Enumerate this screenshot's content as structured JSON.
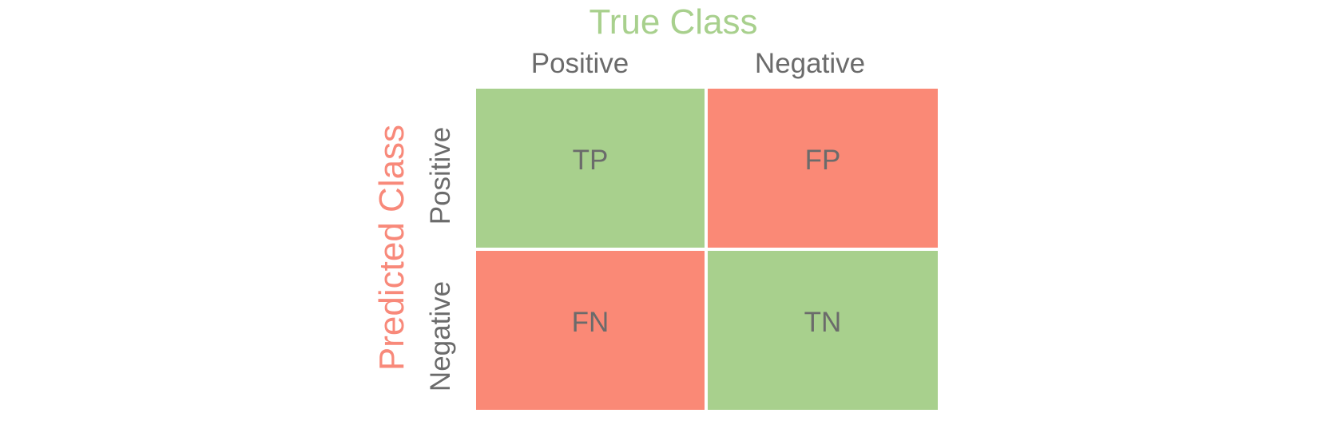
{
  "colors": {
    "true_title": "#a8d08d",
    "predicted_title": "#f8897a",
    "correct_cell": "#a8d08d",
    "incorrect_cell": "#fa8976",
    "label_text": "#6b6b6b"
  },
  "true_class_title": "True Class",
  "predicted_class_title": "Predicted Class",
  "columns": [
    "Positive",
    "Negative"
  ],
  "rows": [
    "Positive",
    "Negative"
  ],
  "cells": [
    [
      {
        "label": "TP",
        "kind": "correct"
      },
      {
        "label": "FP",
        "kind": "incorrect"
      }
    ],
    [
      {
        "label": "FN",
        "kind": "incorrect"
      },
      {
        "label": "TN",
        "kind": "correct"
      }
    ]
  ]
}
